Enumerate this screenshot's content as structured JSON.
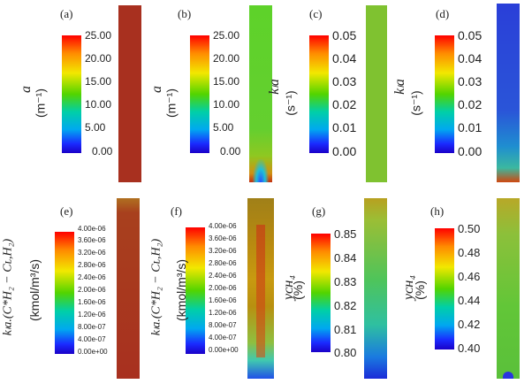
{
  "panels": [
    {
      "id": "a",
      "label": "(a)",
      "quantity": "a",
      "unit": "(m⁻¹)",
      "ticks": [
        "25.00",
        "20.00",
        "15.00",
        "10.00",
        "5.00",
        "0.00"
      ]
    },
    {
      "id": "b",
      "label": "(b)",
      "quantity": "a",
      "unit": "(m⁻¹)",
      "ticks": [
        "25.00",
        "20.00",
        "15.00",
        "10.00",
        "5.00",
        "0.00"
      ]
    },
    {
      "id": "c",
      "label": "(c)",
      "quantity": "kₗa",
      "unit": "(s⁻¹)",
      "ticks": [
        "0.05",
        "0.04",
        "0.03",
        "0.02",
        "0.01",
        "0.00"
      ]
    },
    {
      "id": "d",
      "label": "(d)",
      "quantity": "kₗa",
      "unit": "(s⁻¹)",
      "ticks": [
        "0.05",
        "0.04",
        "0.03",
        "0.02",
        "0.01",
        "0.00"
      ]
    },
    {
      "id": "e",
      "label": "(e)",
      "quantity": "kₗa.(C*H₂ − Cʟ,H₂)",
      "unit": "(kmol/m³/s)",
      "ticks": [
        "4.00e-06",
        "3.60e-06",
        "3.20e-06",
        "2.80e-06",
        "2.40e-06",
        "2.00e-06",
        "1.60e-06",
        "1.20e-06",
        "8.00e-07",
        "4.00e-07",
        "0.00e+00"
      ]
    },
    {
      "id": "f",
      "label": "(f)",
      "quantity": "kₗa.(C*H₂ − Cʟ,H₂)",
      "unit": "(kmol/m³/s)",
      "ticks": [
        "4.00e-06",
        "3.60e-06",
        "3.20e-06",
        "2.80e-06",
        "2.40e-06",
        "2.00e-06",
        "1.60e-06",
        "1.20e-06",
        "8.00e-07",
        "4.00e-07",
        "0.00e+00"
      ]
    },
    {
      "id": "g",
      "label": "(g)",
      "quantity": "yᴄʜ₄",
      "unit": "(%)",
      "ticks": [
        "0.85",
        "0.84",
        "0.83",
        "0.82",
        "0.81",
        "0.80"
      ]
    },
    {
      "id": "h",
      "label": "(h)",
      "quantity": "yᴄʜ₄",
      "unit": "(%)",
      "ticks": [
        "0.50",
        "0.48",
        "0.46",
        "0.44",
        "0.42",
        "0.40"
      ]
    }
  ],
  "colors": {
    "red": "#ff0000",
    "orange": "#ff8a00",
    "yellow": "#f2e800",
    "green": "#52d400",
    "cyan": "#00cfa8",
    "blue": "#1a2bff",
    "brown": "#a8301f"
  }
}
